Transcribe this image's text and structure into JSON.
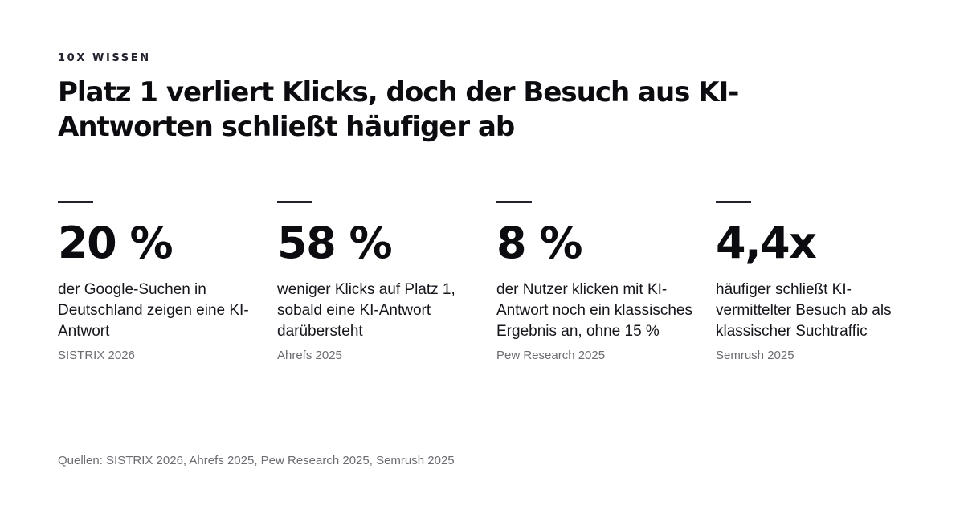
{
  "eyebrow": "10X WISSEN",
  "headline": "Platz 1 verliert Klicks, doch der Besuch aus KI-Antworten schließt häufiger ab",
  "stats": [
    {
      "value": "20 %",
      "description": "der Google-Suchen in Deutschland zeigen eine KI-Antwort",
      "source": "SISTRIX 2026"
    },
    {
      "value": "58 %",
      "description": "weniger Klicks auf Platz 1, sobald eine KI-Antwort darübersteht",
      "source": "Ahrefs 2025"
    },
    {
      "value": "8 %",
      "description": "der Nutzer klicken mit KI-Antwort noch ein klassisches Ergebnis an, ohne 15 %",
      "source": "Pew Research 2025"
    },
    {
      "value": "4,4x",
      "description": "häufiger schließt KI-vermittelter Besuch ab als klassischer Suchtraffic",
      "source": "Semrush 2025"
    }
  ],
  "footer": "Quellen: SISTRIX 2026, Ahrefs 2025, Pew Research 2025, Semrush 2025",
  "colors": {
    "text": "#0b0b10",
    "rule": "#23232f",
    "muted": "#6b6b72",
    "background": "#ffffff"
  }
}
